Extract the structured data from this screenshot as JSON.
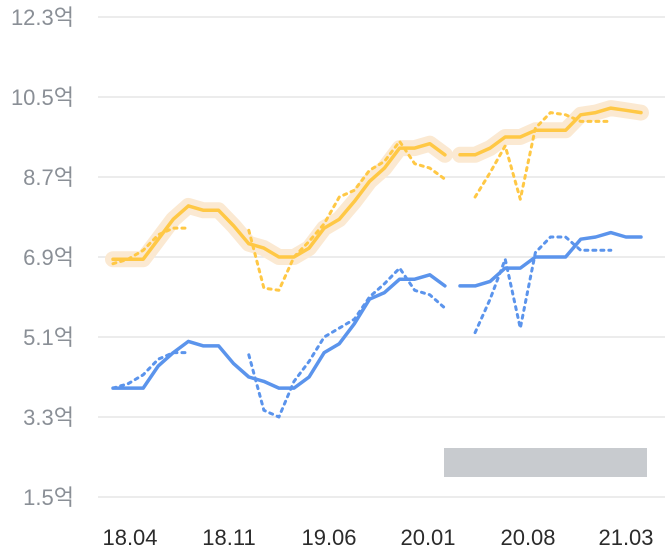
{
  "chart_data": {
    "type": "line",
    "y_unit_suffix": "억",
    "y_ticks": [
      1.5,
      3.3,
      5.1,
      6.9,
      8.7,
      10.5,
      12.3
    ],
    "y_tick_labels": [
      "1.5억",
      "3.3억",
      "5.1억",
      "6.9억",
      "8.7억",
      "10.5억",
      "12.3억"
    ],
    "ylim": [
      1.5,
      12.3
    ],
    "x_tick_labels": [
      "18.04",
      "18.11",
      "19.06",
      "20.01",
      "20.08",
      "21.03"
    ],
    "grid": true,
    "colors": {
      "upper": "#ffc845",
      "upper_band": "#fbe9d2",
      "lower": "#5b94ec",
      "gray_bar": "#c8cbcf"
    },
    "series": [
      {
        "key": "upper_solid",
        "style": "solid",
        "points": [
          [
            0,
            6.85
          ],
          [
            1,
            6.85
          ],
          [
            2,
            6.85
          ],
          [
            3,
            7.3
          ],
          [
            4,
            7.75
          ],
          [
            5,
            8.05
          ],
          [
            6,
            7.95
          ],
          [
            7,
            7.95
          ],
          [
            8,
            7.6
          ],
          [
            9,
            7.2
          ],
          [
            10,
            7.1
          ],
          [
            11,
            6.9
          ],
          [
            12,
            6.9
          ],
          [
            13,
            7.1
          ],
          [
            14,
            7.55
          ],
          [
            15,
            7.75
          ],
          [
            16,
            8.15
          ],
          [
            17,
            8.6
          ],
          [
            18,
            8.9
          ],
          [
            19,
            9.35
          ],
          [
            20,
            9.35
          ],
          [
            21,
            9.45
          ],
          [
            22,
            9.2
          ],
          [
            23,
            9.2
          ],
          [
            24,
            9.2
          ],
          [
            25,
            9.35
          ],
          [
            26,
            9.6
          ],
          [
            27,
            9.6
          ],
          [
            28,
            9.75
          ],
          [
            29,
            9.75
          ],
          [
            30,
            9.75
          ],
          [
            31,
            10.1
          ],
          [
            32,
            10.15
          ],
          [
            33,
            10.25
          ],
          [
            34,
            10.2
          ],
          [
            35,
            10.15
          ]
        ]
      },
      {
        "key": "upper_dotted",
        "style": "dotted",
        "points": [
          [
            0,
            6.75
          ],
          [
            1,
            6.85
          ],
          [
            2,
            7.05
          ],
          [
            3,
            7.4
          ],
          [
            4,
            7.55
          ],
          [
            5,
            7.55
          ],
          [
            6,
            null
          ],
          [
            7,
            null
          ],
          [
            8,
            null
          ],
          [
            9,
            7.5
          ],
          [
            10,
            6.2
          ],
          [
            11,
            6.15
          ],
          [
            12,
            6.9
          ],
          [
            13,
            7.25
          ],
          [
            14,
            7.65
          ],
          [
            15,
            8.25
          ],
          [
            16,
            8.4
          ],
          [
            17,
            8.85
          ],
          [
            18,
            9.05
          ],
          [
            19,
            9.5
          ],
          [
            20,
            9.0
          ],
          [
            21,
            8.9
          ],
          [
            22,
            8.65
          ],
          [
            23,
            null
          ],
          [
            24,
            8.25
          ],
          [
            25,
            8.8
          ],
          [
            26,
            9.4
          ],
          [
            27,
            8.2
          ],
          [
            28,
            9.8
          ],
          [
            29,
            10.15
          ],
          [
            30,
            10.1
          ],
          [
            31,
            9.95
          ],
          [
            32,
            9.95
          ],
          [
            33,
            9.95
          ],
          [
            34,
            null
          ],
          [
            35,
            null
          ]
        ]
      },
      {
        "key": "lower_solid",
        "style": "solid",
        "points": [
          [
            0,
            3.95
          ],
          [
            1,
            3.95
          ],
          [
            2,
            3.95
          ],
          [
            3,
            4.45
          ],
          [
            4,
            4.75
          ],
          [
            5,
            5.0
          ],
          [
            6,
            4.9
          ],
          [
            7,
            4.9
          ],
          [
            8,
            4.5
          ],
          [
            9,
            4.2
          ],
          [
            10,
            4.1
          ],
          [
            11,
            3.95
          ],
          [
            12,
            3.95
          ],
          [
            13,
            4.2
          ],
          [
            14,
            4.75
          ],
          [
            15,
            4.95
          ],
          [
            16,
            5.4
          ],
          [
            17,
            5.95
          ],
          [
            18,
            6.1
          ],
          [
            19,
            6.4
          ],
          [
            20,
            6.4
          ],
          [
            21,
            6.5
          ],
          [
            22,
            6.25
          ],
          [
            23,
            6.25
          ],
          [
            24,
            6.25
          ],
          [
            25,
            6.35
          ],
          [
            26,
            6.65
          ],
          [
            27,
            6.65
          ],
          [
            28,
            6.9
          ],
          [
            29,
            6.9
          ],
          [
            30,
            6.9
          ],
          [
            31,
            7.3
          ],
          [
            32,
            7.35
          ],
          [
            33,
            7.45
          ],
          [
            34,
            7.35
          ],
          [
            35,
            7.35
          ]
        ]
      },
      {
        "key": "lower_dotted",
        "style": "dotted",
        "points": [
          [
            0,
            3.95
          ],
          [
            1,
            4.05
          ],
          [
            2,
            4.25
          ],
          [
            3,
            4.6
          ],
          [
            4,
            4.75
          ],
          [
            5,
            4.75
          ],
          [
            6,
            null
          ],
          [
            7,
            null
          ],
          [
            8,
            null
          ],
          [
            9,
            4.7
          ],
          [
            10,
            3.45
          ],
          [
            11,
            3.3
          ],
          [
            12,
            4.1
          ],
          [
            13,
            4.55
          ],
          [
            14,
            5.1
          ],
          [
            15,
            5.3
          ],
          [
            16,
            5.5
          ],
          [
            17,
            6.0
          ],
          [
            18,
            6.3
          ],
          [
            19,
            6.65
          ],
          [
            20,
            6.15
          ],
          [
            21,
            6.05
          ],
          [
            22,
            5.75
          ],
          [
            23,
            null
          ],
          [
            24,
            5.2
          ],
          [
            25,
            5.95
          ],
          [
            26,
            6.85
          ],
          [
            27,
            5.3
          ],
          [
            28,
            7.0
          ],
          [
            29,
            7.35
          ],
          [
            30,
            7.35
          ],
          [
            31,
            7.05
          ],
          [
            32,
            7.05
          ],
          [
            33,
            7.05
          ],
          [
            34,
            null
          ],
          [
            35,
            null
          ]
        ]
      }
    ],
    "gap_segments": {
      "upper_solid": [
        [
          22,
          23
        ]
      ],
      "lower_solid": [
        [
          22,
          23
        ]
      ]
    }
  }
}
